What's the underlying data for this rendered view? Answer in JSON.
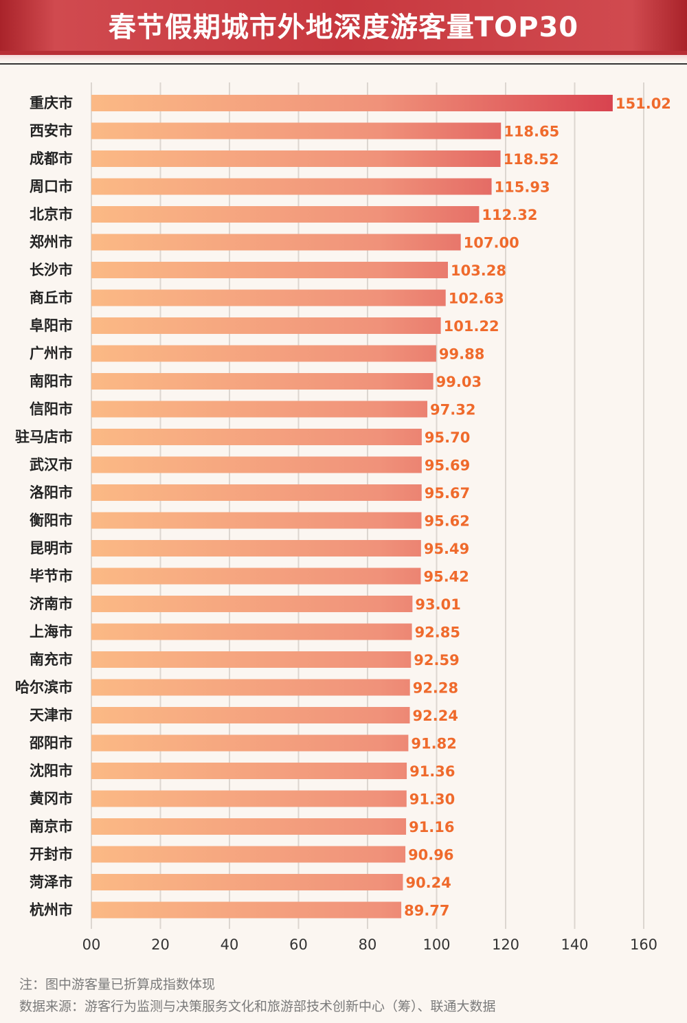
{
  "chart_data": {
    "type": "bar",
    "orientation": "horizontal",
    "title": "春节假期城市外地深度游客量TOP30",
    "categories": [
      "重庆市",
      "西安市",
      "成都市",
      "周口市",
      "北京市",
      "郑州市",
      "长沙市",
      "商丘市",
      "阜阳市",
      "广州市",
      "南阳市",
      "信阳市",
      "驻马店市",
      "武汉市",
      "洛阳市",
      "衡阳市",
      "昆明市",
      "毕节市",
      "济南市",
      "上海市",
      "南充市",
      "哈尔滨市",
      "天津市",
      "邵阳市",
      "沈阳市",
      "黄冈市",
      "南京市",
      "开封市",
      "菏泽市",
      "杭州市"
    ],
    "values": [
      151.02,
      118.65,
      118.52,
      115.93,
      112.32,
      107.0,
      103.28,
      102.63,
      101.22,
      99.88,
      99.03,
      97.32,
      95.7,
      95.69,
      95.67,
      95.62,
      95.49,
      95.42,
      93.01,
      92.85,
      92.59,
      92.28,
      92.24,
      91.82,
      91.36,
      91.3,
      91.16,
      90.96,
      90.24,
      89.77
    ],
    "value_labels": [
      "151.02",
      "118.65",
      "118.52",
      "115.93",
      "112.32",
      "107.00",
      "103.28",
      "102.63",
      "101.22",
      "99.88",
      "99.03",
      "97.32",
      "95.70",
      "95.69",
      "95.67",
      "95.62",
      "95.49",
      "95.42",
      "93.01",
      "92.85",
      "92.59",
      "92.28",
      "92.24",
      "91.82",
      "91.36",
      "91.30",
      "91.16",
      "90.96",
      "90.24",
      "89.77"
    ],
    "xlim": [
      0,
      160
    ],
    "xticks": [
      0,
      20,
      40,
      60,
      80,
      100,
      120,
      140,
      160
    ],
    "xtick_labels": [
      "00",
      "20",
      "40",
      "60",
      "80",
      "100",
      "120",
      "140",
      "160"
    ],
    "xlabel": "",
    "ylabel": "",
    "grid": true,
    "colors": {
      "bar_start": "#fbb985",
      "bar_mid": "#f0927a",
      "bar_end": "#d8434f",
      "value_label": "#ef6a2c",
      "grid": "#dcd6d0"
    }
  },
  "footer": {
    "note": "注：图中游客量已折算成指数体现",
    "source": "数据来源：游客行为监测与决策服务文化和旅游部技术创新中心（筹）、联通大数据"
  }
}
